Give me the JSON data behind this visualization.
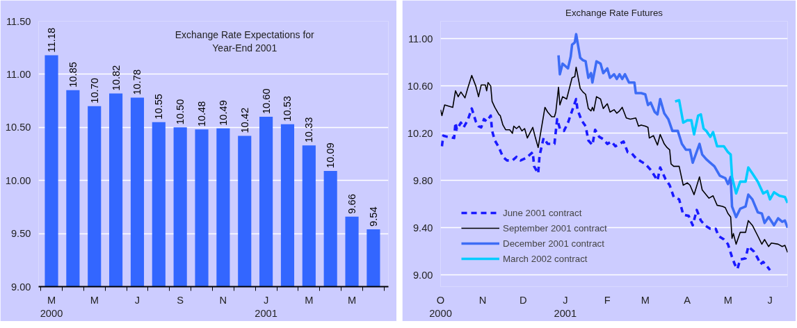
{
  "chart_data": [
    {
      "type": "bar",
      "title": "Exchange Rate Expectations for\nYear-End 2001",
      "categories": [
        "M\n2000",
        null,
        "M",
        null,
        "J",
        null,
        "S",
        null,
        "N",
        null,
        "J\n2001",
        null,
        "M",
        null,
        "M",
        null
      ],
      "values": [
        11.18,
        10.85,
        10.7,
        10.82,
        10.78,
        10.55,
        10.5,
        10.48,
        10.49,
        10.42,
        10.6,
        10.53,
        10.33,
        10.09,
        9.66,
        9.54
      ],
      "value_labels": [
        "11.18",
        "10.85",
        "10.70",
        "10.82",
        "10.78",
        "10.55",
        "10.50",
        "10.48",
        "10.49",
        "10.42",
        "10.60",
        "10.53",
        "10.33",
        "10.09",
        "9.66",
        "9.54"
      ],
      "color": "#3366ff",
      "ylim": [
        9,
        11.5
      ],
      "yticks": [
        {
          "value": 9,
          "label": "9.00"
        },
        {
          "value": 9.5,
          "label": "9.50"
        },
        {
          "value": 10,
          "label": "10.00"
        },
        {
          "value": 10.5,
          "label": "10.50"
        },
        {
          "value": 11,
          "label": "11.00"
        },
        {
          "value": 11.5,
          "label": "11.50"
        }
      ],
      "grid": "y"
    },
    {
      "type": "line",
      "title": "Exchange Rate Futures",
      "ylim": [
        8.9,
        11.15
      ],
      "yticks": [
        {
          "value": 9,
          "label": "9.00"
        },
        {
          "value": 9.4,
          "label": "9.40"
        },
        {
          "value": 9.8,
          "label": "9.80"
        },
        {
          "value": 10.2,
          "label": "10.20"
        },
        {
          "value": 10.6,
          "label": "10.60"
        },
        {
          "value": 11,
          "label": "11.00"
        }
      ],
      "xlim": [
        "2000-10-01",
        "2001-06-14"
      ],
      "xticks": [
        {
          "value": "2000-10-01",
          "label": "O\n2000"
        },
        {
          "value": "2000-11-01",
          "label": "N"
        },
        {
          "value": "2000-12-01",
          "label": "D"
        },
        {
          "value": "2001-01-01",
          "label": "J\n2001"
        },
        {
          "value": "2001-02-01",
          "label": "F"
        },
        {
          "value": "2001-03-01",
          "label": "M"
        },
        {
          "value": "2001-04-01",
          "label": "A"
        },
        {
          "value": "2001-05-01",
          "label": "M"
        },
        {
          "value": "2001-06-01",
          "label": "J"
        }
      ],
      "grid": "y",
      "legend": "bottom left",
      "marker": "none",
      "series": [
        {
          "name": "June 2001 contract",
          "color": "#1a1aff",
          "line_style": "dashed",
          "x": [
            "2000-10-02",
            "2000-10-03",
            "2000-10-06",
            "2000-10-11",
            "2000-10-12",
            "2000-10-13",
            "2000-10-16",
            "2000-10-18",
            "2000-10-21",
            "2000-10-24",
            "2000-10-27",
            "2000-10-29",
            "2000-10-31",
            "2000-11-02",
            "2000-11-04",
            "2000-11-07",
            "2000-11-08",
            "2000-11-10",
            "2000-11-13",
            "2000-11-16",
            "2000-11-19",
            "2000-11-23",
            "2000-11-26",
            "2000-11-29",
            "2000-12-03",
            "2000-12-06",
            "2000-12-08",
            "2000-12-09",
            "2000-12-12",
            "2000-12-13",
            "2000-12-16",
            "2000-12-19",
            "2000-12-24",
            "2000-12-26",
            "2000-12-28",
            "2000-12-31",
            "2001-01-03",
            "2001-01-06",
            "2001-01-09",
            "2001-01-10",
            "2001-01-13",
            "2001-01-16",
            "2001-01-18",
            "2001-01-21",
            "2001-01-23",
            "2001-01-26",
            "2001-01-29",
            "2001-02-01",
            "2001-02-04",
            "2001-02-07",
            "2001-02-10",
            "2001-02-13",
            "2001-02-16",
            "2001-02-19",
            "2001-02-22",
            "2001-02-26",
            "2001-03-01",
            "2001-03-05",
            "2001-03-10",
            "2001-03-12",
            "2001-03-16",
            "2001-03-19",
            "2001-03-22",
            "2001-03-26",
            "2001-03-29",
            "2001-04-02",
            "2001-04-05",
            "2001-04-08",
            "2001-04-11",
            "2001-04-14",
            "2001-04-18",
            "2001-04-22",
            "2001-04-24",
            "2001-04-28",
            "2001-05-01",
            "2001-05-04",
            "2001-05-06",
            "2001-05-08",
            "2001-05-10",
            "2001-05-14",
            "2001-05-16",
            "2001-05-20",
            "2001-05-23",
            "2001-05-25",
            "2001-05-27",
            "2001-05-30",
            "2001-06-01"
          ],
          "values": [
            10.09,
            10.18,
            10.17,
            10.16,
            10.29,
            10.23,
            10.29,
            10.25,
            10.31,
            10.41,
            10.3,
            10.26,
            10.25,
            10.32,
            10.3,
            10.35,
            10.22,
            10.14,
            10.08,
            10.0,
            9.97,
            9.97,
            10.0,
            9.97,
            9.99,
            10.02,
            10.04,
            9.92,
            9.86,
            10.01,
            10.16,
            10.11,
            10.11,
            10.32,
            10.24,
            10.22,
            10.29,
            10.39,
            10.49,
            10.4,
            10.31,
            10.26,
            10.14,
            10.1,
            10.23,
            10.17,
            10.15,
            10.11,
            10.13,
            10.09,
            10.11,
            10.13,
            10.04,
            10.03,
            9.99,
            9.96,
            9.94,
            9.89,
            9.8,
            9.91,
            9.81,
            9.76,
            9.66,
            9.64,
            9.51,
            9.5,
            9.42,
            9.55,
            9.46,
            9.42,
            9.39,
            9.39,
            9.33,
            9.3,
            9.26,
            9.15,
            9.09,
            9.05,
            9.13,
            9.14,
            9.24,
            9.2,
            9.14,
            9.09,
            9.11,
            9.07,
            9.04
          ]
        },
        {
          "name": "September 2001 contract",
          "color": "#000000",
          "line_style": "solid",
          "x": [
            "2000-10-01",
            "2000-10-02",
            "2000-10-04",
            "2000-10-07",
            "2000-10-10",
            "2000-10-12",
            "2000-10-14",
            "2000-10-16",
            "2000-10-19",
            "2000-10-21",
            "2000-10-24",
            "2000-10-27",
            "2000-10-29",
            "2000-10-31",
            "2000-11-01",
            "2000-11-03",
            "2000-11-04",
            "2000-11-05",
            "2000-11-07",
            "2000-11-08",
            "2000-11-10",
            "2000-11-13",
            "2000-11-14",
            "2000-11-16",
            "2000-11-18",
            "2000-11-21",
            "2000-11-23",
            "2000-11-24",
            "2000-11-26",
            "2000-11-28",
            "2000-11-30",
            "2000-12-02",
            "2000-12-04",
            "2000-12-08",
            "2000-12-10",
            "2000-12-12",
            "2000-12-17",
            "2000-12-19",
            "2000-12-22",
            "2000-12-24",
            "2000-12-25",
            "2000-12-27",
            "2000-12-28",
            "2000-12-30",
            "2001-01-02",
            "2001-01-04",
            "2001-01-06",
            "2001-01-08",
            "2001-01-09",
            "2001-01-12",
            "2001-01-14",
            "2001-01-16",
            "2001-01-18",
            "2001-01-20",
            "2001-01-21",
            "2001-01-22",
            "2001-01-24",
            "2001-01-27",
            "2001-01-29",
            "2001-02-01",
            "2001-02-03",
            "2001-02-06",
            "2001-02-08",
            "2001-02-10",
            "2001-02-12",
            "2001-02-15",
            "2001-02-18",
            "2001-02-22",
            "2001-02-24",
            "2001-02-26",
            "2001-03-01",
            "2001-03-03",
            "2001-03-04",
            "2001-03-07",
            "2001-03-10",
            "2001-03-12",
            "2001-03-15",
            "2001-03-17",
            "2001-03-19",
            "2001-03-20",
            "2001-03-22",
            "2001-03-26",
            "2001-03-29",
            "2001-04-01",
            "2001-04-03",
            "2001-04-06",
            "2001-04-10",
            "2001-04-12",
            "2001-04-17",
            "2001-04-20",
            "2001-04-23",
            "2001-04-27",
            "2001-04-29",
            "2001-05-01",
            "2001-05-03",
            "2001-05-04",
            "2001-05-05",
            "2001-05-07",
            "2001-05-10",
            "2001-05-14",
            "2001-05-16",
            "2001-05-19",
            "2001-05-23",
            "2001-05-26",
            "2001-05-28",
            "2001-05-31",
            "2001-06-02",
            "2001-06-07",
            "2001-06-10",
            "2001-06-12",
            "2001-06-14"
          ],
          "values": [
            10.4,
            10.35,
            10.44,
            10.43,
            10.42,
            10.56,
            10.51,
            10.55,
            10.5,
            10.58,
            10.69,
            10.6,
            10.51,
            10.61,
            10.61,
            10.61,
            10.56,
            10.63,
            10.6,
            10.47,
            10.42,
            10.36,
            10.35,
            10.27,
            10.23,
            10.23,
            10.2,
            10.26,
            10.24,
            10.26,
            10.22,
            10.24,
            10.16,
            10.25,
            10.16,
            10.08,
            10.42,
            10.38,
            10.34,
            10.34,
            10.38,
            10.59,
            10.44,
            10.51,
            10.49,
            10.58,
            10.67,
            10.68,
            10.76,
            10.58,
            10.55,
            10.53,
            10.41,
            10.39,
            10.42,
            10.39,
            10.51,
            10.49,
            10.41,
            10.45,
            10.38,
            10.4,
            10.37,
            10.39,
            10.42,
            10.33,
            10.32,
            10.33,
            10.26,
            10.27,
            10.26,
            10.25,
            10.16,
            10.18,
            10.1,
            10.19,
            10.11,
            10.08,
            10.06,
            9.94,
            9.92,
            9.92,
            9.76,
            9.78,
            9.76,
            9.68,
            9.83,
            9.72,
            9.65,
            9.67,
            9.59,
            9.58,
            9.57,
            9.52,
            9.49,
            9.31,
            9.35,
            9.26,
            9.36,
            9.36,
            9.46,
            9.42,
            9.33,
            9.26,
            9.3,
            9.24,
            9.27,
            9.26,
            9.24,
            9.25,
            9.19
          ]
        },
        {
          "name": "December 2001 contract",
          "color": "#3d6cf5",
          "line_style": "solid",
          "x": [
            "2000-12-27",
            "2000-12-28",
            "2000-12-30",
            "2001-01-01",
            "2001-01-03",
            "2001-01-05",
            "2001-01-06",
            "2001-01-08",
            "2001-01-09",
            "2001-01-12",
            "2001-01-14",
            "2001-01-16",
            "2001-01-18",
            "2001-01-20",
            "2001-01-21",
            "2001-01-24",
            "2001-01-27",
            "2001-01-29",
            "2001-02-01",
            "2001-02-03",
            "2001-02-06",
            "2001-02-08",
            "2001-02-10",
            "2001-02-12",
            "2001-02-14",
            "2001-02-17",
            "2001-02-21",
            "2001-02-22",
            "2001-02-26",
            "2001-03-01",
            "2001-03-03",
            "2001-03-05",
            "2001-03-08",
            "2001-03-10",
            "2001-03-12",
            "2001-03-15",
            "2001-03-18",
            "2001-03-21",
            "2001-03-25",
            "2001-03-28",
            "2001-03-31",
            "2001-04-03",
            "2001-04-05",
            "2001-04-10",
            "2001-04-12",
            "2001-04-15",
            "2001-04-17",
            "2001-04-21",
            "2001-04-25",
            "2001-04-29",
            "2001-05-01",
            "2001-05-03",
            "2001-05-04",
            "2001-05-07",
            "2001-05-10",
            "2001-05-14",
            "2001-05-16",
            "2001-05-19",
            "2001-05-23",
            "2001-05-26",
            "2001-05-28",
            "2001-05-31",
            "2001-06-04",
            "2001-06-07",
            "2001-06-10",
            "2001-06-12",
            "2001-06-14"
          ],
          "values": [
            10.86,
            10.7,
            10.79,
            10.77,
            10.75,
            10.85,
            10.95,
            10.97,
            11.04,
            10.84,
            10.82,
            10.81,
            10.67,
            10.71,
            10.63,
            10.81,
            10.79,
            10.71,
            10.75,
            10.67,
            10.7,
            10.66,
            10.7,
            10.66,
            10.7,
            10.63,
            10.63,
            10.54,
            10.54,
            10.53,
            10.44,
            10.46,
            10.38,
            10.36,
            10.49,
            10.37,
            10.32,
            10.22,
            10.22,
            10.11,
            10.06,
            10.06,
            9.95,
            10.11,
            10.02,
            9.98,
            9.96,
            9.92,
            9.84,
            9.82,
            9.77,
            9.83,
            9.58,
            9.49,
            9.56,
            9.58,
            9.68,
            9.64,
            9.53,
            9.52,
            9.44,
            9.49,
            9.42,
            9.48,
            9.45,
            9.46,
            9.4
          ]
        },
        {
          "name": "March 2002 contract",
          "color": "#00ccff",
          "line_style": "solid",
          "x": [
            "2001-03-23",
            "2001-03-26",
            "2001-03-29",
            "2001-04-01",
            "2001-04-04",
            "2001-04-06",
            "2001-04-09",
            "2001-04-11",
            "2001-04-13",
            "2001-04-15",
            "2001-04-18",
            "2001-04-20",
            "2001-04-23",
            "2001-04-28",
            "2001-05-01",
            "2001-05-03",
            "2001-05-04",
            "2001-05-07",
            "2001-05-10",
            "2001-05-14",
            "2001-05-16",
            "2001-05-19",
            "2001-05-23",
            "2001-05-27",
            "2001-05-30",
            "2001-06-01",
            "2001-06-04",
            "2001-06-08",
            "2001-06-12",
            "2001-06-14"
          ],
          "values": [
            10.47,
            10.48,
            10.29,
            10.31,
            10.31,
            10.19,
            10.35,
            10.36,
            10.24,
            10.22,
            10.17,
            10.21,
            10.09,
            10.09,
            10.04,
            10.02,
            9.83,
            9.69,
            9.79,
            9.79,
            9.91,
            9.86,
            9.79,
            9.69,
            9.71,
            9.64,
            9.7,
            9.67,
            9.66,
            9.61
          ]
        }
      ]
    }
  ]
}
